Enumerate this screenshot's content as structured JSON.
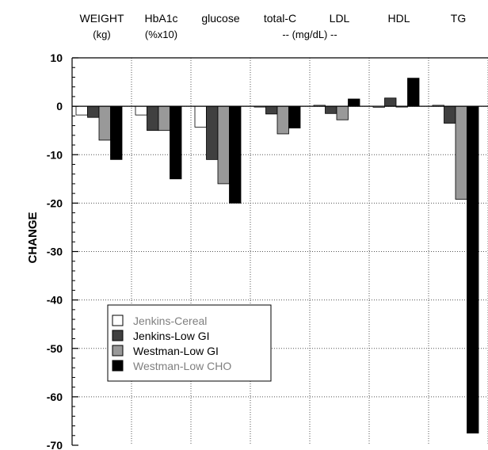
{
  "chart_data": {
    "type": "bar",
    "categories": [
      "WEIGHT",
      "HbA1c",
      "glucose",
      "total-C",
      "LDL",
      "HDL",
      "TG"
    ],
    "category_units": [
      "(kg)",
      "(%x10)",
      "",
      "",
      "",
      "",
      ""
    ],
    "shared_unit_label": "-- (mg/dL) --",
    "ylabel": "CHANGE",
    "ylim": [
      -70,
      10
    ],
    "yticks": [
      10,
      0,
      -10,
      -20,
      -30,
      -40,
      -50,
      -60,
      -70
    ],
    "grid": true,
    "legend_position": "lower-left",
    "series": [
      {
        "name": "Jenkins-Cereal",
        "color": "#ffffff",
        "text_color": "#7f7f7f",
        "values": [
          -1.8,
          -1.8,
          -4.3,
          0,
          0.2,
          -0.2,
          0.2
        ]
      },
      {
        "name": "Jenkins-Low GI",
        "color": "#404040",
        "text_color": "#000000",
        "values": [
          -2.3,
          -5,
          -11,
          -1.6,
          -1.5,
          1.7,
          -3.5
        ]
      },
      {
        "name": "Westman-Low GI",
        "color": "#999999",
        "text_color": "#000000",
        "values": [
          -7,
          -5,
          -16,
          -5.7,
          -2.8,
          0,
          -19.2
        ]
      },
      {
        "name": "Westman-Low CHO",
        "color": "#000000",
        "text_color": "#7f7f7f",
        "values": [
          -11,
          -15,
          -20,
          -4.5,
          1.5,
          5.8,
          -67.5
        ]
      }
    ]
  }
}
